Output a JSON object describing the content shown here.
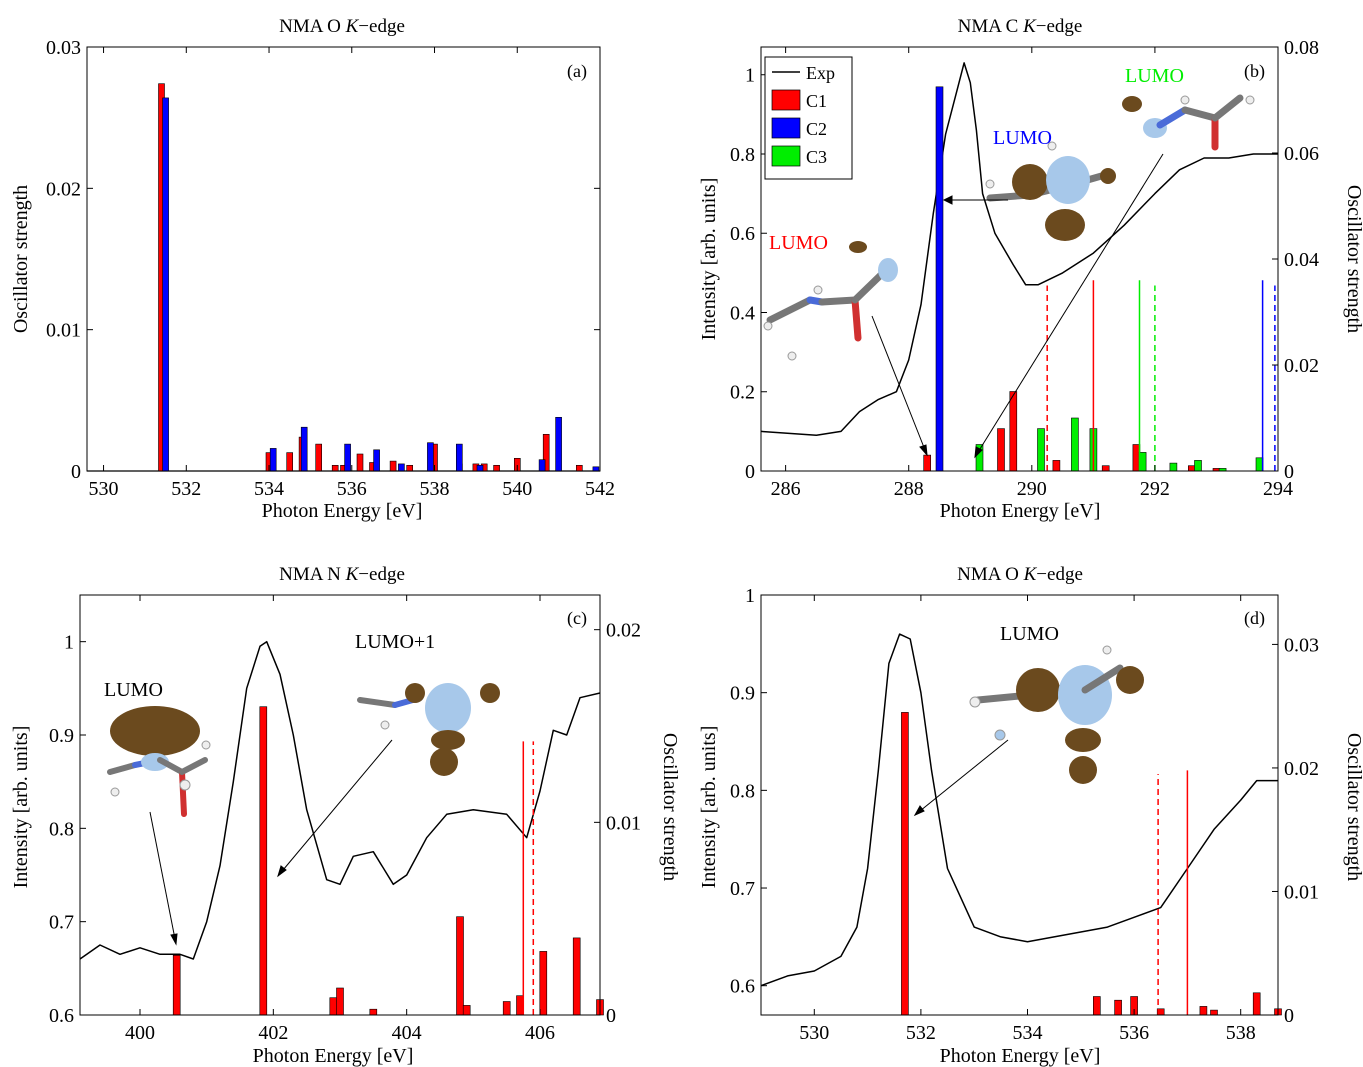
{
  "chart_data": [
    {
      "id": "a",
      "type": "bar",
      "title": "NMA O K−edge",
      "title_prefix": "NMA O ",
      "title_em": "K",
      "title_suffix": "−edge",
      "panel_label": "(a)",
      "xlabel": "Photon Energy [eV]",
      "ylabel": "Oscillator strength",
      "xlim": [
        529.6,
        542
      ],
      "ylim": [
        0,
        0.03
      ],
      "xticks": [
        530,
        532,
        534,
        536,
        538,
        540,
        542
      ],
      "yticks": [
        0,
        0.01,
        0.02,
        0.03
      ],
      "ytick_labels": [
        "0",
        "0.01",
        "0.02",
        "0.03"
      ],
      "baseline": [
        [
          529.6,
          0
        ],
        [
          531.3,
          0
        ],
        [
          542,
          0
        ]
      ],
      "series": [
        {
          "color": "#ff0000",
          "x": [
            531.4,
            534.0,
            534.5,
            534.8,
            535.2,
            535.6,
            535.8,
            536.2,
            536.5,
            537.0,
            537.4,
            538.0,
            538.6,
            539.0,
            539.2,
            539.5,
            540.0,
            540.7,
            541.5
          ],
          "values": [
            0.0274,
            0.0013,
            0.0013,
            0.0024,
            0.0019,
            0.0004,
            0.0004,
            0.0012,
            0.0006,
            0.0007,
            0.0004,
            0.0019,
            0.0005,
            0.0005,
            0.0005,
            0.0004,
            0.0009,
            0.0026,
            0.0004
          ]
        },
        {
          "color": "#0000ff",
          "x": [
            531.5,
            534.1,
            534.85,
            535.9,
            536.6,
            537.2,
            537.9,
            538.6,
            539.1,
            540.6,
            541.0,
            541.9
          ],
          "values": [
            0.0264,
            0.0016,
            0.0031,
            0.0019,
            0.0015,
            0.0005,
            0.002,
            0.0019,
            0.0004,
            0.0008,
            0.0038,
            0.0003
          ]
        }
      ]
    },
    {
      "id": "b",
      "type": "line+bar",
      "title": "NMA C K−edge",
      "title_prefix": "NMA C ",
      "title_em": "K",
      "title_suffix": "−edge",
      "panel_label": "(b)",
      "xlabel": "Photon Energy [eV]",
      "ylabel": "Intensity [arb. units]",
      "y2label": "Oscillator strength",
      "xlim": [
        285.6,
        294
      ],
      "ylim": [
        0,
        1.07
      ],
      "y2lim": [
        0,
        0.08
      ],
      "xticks": [
        286,
        288,
        290,
        292,
        294
      ],
      "yticks": [
        0,
        0.2,
        0.4,
        0.6,
        0.8,
        1
      ],
      "ytick_labels": [
        "0",
        "0.2",
        "0.4",
        "0.6",
        "0.8",
        "1"
      ],
      "y2ticks": [
        0,
        0.02,
        0.04,
        0.06,
        0.08
      ],
      "y2tick_labels": [
        "0",
        "0.02",
        "0.04",
        "0.06",
        "0.08"
      ],
      "legend": [
        {
          "label": "Exp",
          "kind": "line",
          "color": "#000000"
        },
        {
          "label": "C1",
          "kind": "patch",
          "color": "#ff0000"
        },
        {
          "label": "C2",
          "kind": "patch",
          "color": "#0000ff"
        },
        {
          "label": "C3",
          "kind": "patch",
          "color": "#00ee00"
        }
      ],
      "legend_position": "top-left",
      "exp_line": [
        [
          285.6,
          0.1
        ],
        [
          286.5,
          0.09
        ],
        [
          286.9,
          0.1
        ],
        [
          287.2,
          0.15
        ],
        [
          287.5,
          0.18
        ],
        [
          287.8,
          0.2
        ],
        [
          288.0,
          0.28
        ],
        [
          288.2,
          0.42
        ],
        [
          288.4,
          0.65
        ],
        [
          288.6,
          0.85
        ],
        [
          288.8,
          0.97
        ],
        [
          288.9,
          1.03
        ],
        [
          289.0,
          0.98
        ],
        [
          289.1,
          0.86
        ],
        [
          289.2,
          0.7
        ],
        [
          289.4,
          0.6
        ],
        [
          289.7,
          0.52
        ],
        [
          289.9,
          0.47
        ],
        [
          290.1,
          0.47
        ],
        [
          290.5,
          0.5
        ],
        [
          291.0,
          0.55
        ],
        [
          291.5,
          0.62
        ],
        [
          292.0,
          0.7
        ],
        [
          292.4,
          0.76
        ],
        [
          292.8,
          0.79
        ],
        [
          293.2,
          0.79
        ],
        [
          293.6,
          0.8
        ],
        [
          294.0,
          0.8
        ]
      ],
      "sticks": [
        {
          "color": "#ff0000",
          "x": [
            288.3,
            289.5,
            289.7,
            290.4,
            291.2,
            291.7,
            292.6,
            293.0
          ],
          "values": [
            0.003,
            0.008,
            0.015,
            0.002,
            0.001,
            0.005,
            0.001,
            0.0005
          ]
        },
        {
          "color": "#0000ff",
          "x": [
            288.5
          ],
          "values": [
            0.0725
          ]
        },
        {
          "color": "#00ee00",
          "x": [
            289.15,
            290.15,
            290.7,
            291.0,
            291.8,
            292.3,
            292.7,
            293.1,
            293.7
          ],
          "values": [
            0.005,
            0.008,
            0.01,
            0.008,
            0.0035,
            0.0015,
            0.002,
            0.0005,
            0.0025
          ]
        }
      ],
      "vlines": [
        {
          "x": 290.25,
          "color": "#ff0000",
          "dashed": true,
          "top": 0.035
        },
        {
          "x": 291.0,
          "color": "#ff0000",
          "dashed": false,
          "top": 0.036
        },
        {
          "x": 291.75,
          "color": "#00ee00",
          "dashed": false,
          "top": 0.036
        },
        {
          "x": 292.0,
          "color": "#00ee00",
          "dashed": true,
          "top": 0.035
        },
        {
          "x": 293.75,
          "color": "#0000ff",
          "dashed": false,
          "top": 0.036
        },
        {
          "x": 293.95,
          "color": "#0000ff",
          "dashed": true,
          "top": 0.035
        }
      ],
      "annotations": [
        {
          "text": "LUMO",
          "color": "#ff0000"
        },
        {
          "text": "LUMO",
          "color": "#0000ff"
        },
        {
          "text": "LUMO",
          "color": "#00ee00"
        }
      ]
    },
    {
      "id": "c",
      "type": "line+bar",
      "title": "NMA N K−edge",
      "title_prefix": "NMA N ",
      "title_em": "K",
      "title_suffix": "−edge",
      "panel_label": "(c)",
      "xlabel": "Photon Energy [eV]",
      "ylabel": "Intensity [arb. units]",
      "y2label": "Oscillator strength",
      "xlim": [
        399.1,
        406.9
      ],
      "ylim": [
        0.6,
        1.05
      ],
      "y2lim": [
        0,
        0.0218
      ],
      "xticks": [
        400,
        402,
        404,
        406
      ],
      "yticks": [
        0.6,
        0.7,
        0.8,
        0.9,
        1
      ],
      "ytick_labels": [
        "0.6",
        "0.7",
        "0.8",
        "0.9",
        "1"
      ],
      "y2ticks": [
        0,
        0.01,
        0.02
      ],
      "y2tick_labels": [
        "0",
        "0.01",
        "0.02"
      ],
      "exp_line": [
        [
          399.1,
          0.66
        ],
        [
          399.4,
          0.675
        ],
        [
          399.7,
          0.665
        ],
        [
          400.0,
          0.672
        ],
        [
          400.3,
          0.665
        ],
        [
          400.6,
          0.665
        ],
        [
          400.8,
          0.66
        ],
        [
          401.0,
          0.7
        ],
        [
          401.2,
          0.76
        ],
        [
          401.4,
          0.85
        ],
        [
          401.6,
          0.95
        ],
        [
          401.8,
          0.995
        ],
        [
          401.9,
          1.0
        ],
        [
          402.1,
          0.965
        ],
        [
          402.3,
          0.9
        ],
        [
          402.5,
          0.82
        ],
        [
          402.8,
          0.745
        ],
        [
          403.0,
          0.74
        ],
        [
          403.2,
          0.77
        ],
        [
          403.5,
          0.775
        ],
        [
          403.8,
          0.74
        ],
        [
          404.0,
          0.75
        ],
        [
          404.3,
          0.79
        ],
        [
          404.6,
          0.815
        ],
        [
          405.0,
          0.82
        ],
        [
          405.5,
          0.815
        ],
        [
          405.8,
          0.79
        ],
        [
          406.0,
          0.84
        ],
        [
          406.2,
          0.905
        ],
        [
          406.4,
          0.9
        ],
        [
          406.6,
          0.94
        ],
        [
          406.9,
          0.945
        ]
      ],
      "sticks": [
        {
          "color": "#ff0000",
          "x": [
            400.55,
            401.85,
            402.9,
            403.0,
            403.5,
            404.8,
            404.9,
            405.5,
            405.7,
            406.05,
            406.55,
            406.9
          ],
          "values": [
            0.0031,
            0.016,
            0.0009,
            0.0014,
            0.0003,
            0.0051,
            0.0005,
            0.0007,
            0.001,
            0.0033,
            0.004,
            0.0008
          ]
        }
      ],
      "vlines": [
        {
          "x": 405.75,
          "color": "#ff0000",
          "dashed": false,
          "top": 0.0142
        },
        {
          "x": 405.9,
          "color": "#ff0000",
          "dashed": true,
          "top": 0.0142
        }
      ],
      "annotations": [
        {
          "text": "LUMO",
          "color": "#000000"
        },
        {
          "text": "LUMO+1",
          "color": "#000000"
        }
      ]
    },
    {
      "id": "d",
      "type": "line+bar",
      "title": "NMA O K−edge",
      "title_prefix": "NMA O ",
      "title_em": "K",
      "title_suffix": "−edge",
      "panel_label": "(d)",
      "xlabel": "Photon Energy [eV]",
      "ylabel": "Intensity [arb. units]",
      "y2label": "Oscillator strength",
      "xlim": [
        529,
        538.7
      ],
      "ylim": [
        0.57,
        1.0
      ],
      "y2lim": [
        0,
        0.034
      ],
      "xticks": [
        530,
        532,
        534,
        536,
        538
      ],
      "yticks": [
        0.6,
        0.7,
        0.8,
        0.9,
        1
      ],
      "ytick_labels": [
        "0.6",
        "0.7",
        "0.8",
        "0.9",
        "1"
      ],
      "y2ticks": [
        0,
        0.01,
        0.02,
        0.03
      ],
      "y2tick_labels": [
        "0",
        "0.01",
        "0.02",
        "0.03"
      ],
      "exp_line": [
        [
          529.0,
          0.6
        ],
        [
          529.5,
          0.61
        ],
        [
          530.0,
          0.615
        ],
        [
          530.5,
          0.63
        ],
        [
          530.8,
          0.66
        ],
        [
          531.0,
          0.72
        ],
        [
          531.2,
          0.82
        ],
        [
          531.4,
          0.93
        ],
        [
          531.6,
          0.96
        ],
        [
          531.8,
          0.955
        ],
        [
          532.0,
          0.9
        ],
        [
          532.2,
          0.82
        ],
        [
          532.5,
          0.72
        ],
        [
          533.0,
          0.66
        ],
        [
          533.5,
          0.65
        ],
        [
          534.0,
          0.645
        ],
        [
          534.5,
          0.65
        ],
        [
          535.0,
          0.655
        ],
        [
          535.5,
          0.66
        ],
        [
          536.0,
          0.67
        ],
        [
          536.5,
          0.68
        ],
        [
          537.0,
          0.72
        ],
        [
          537.5,
          0.76
        ],
        [
          538.0,
          0.79
        ],
        [
          538.3,
          0.81
        ],
        [
          538.7,
          0.81
        ]
      ],
      "sticks": [
        {
          "color": "#ff0000",
          "x": [
            531.7,
            535.3,
            535.7,
            536.0,
            536.5,
            537.3,
            537.5,
            538.3,
            538.7
          ],
          "values": [
            0.0245,
            0.0015,
            0.0012,
            0.0015,
            0.0005,
            0.0007,
            0.0004,
            0.0018,
            0.0005
          ]
        }
      ],
      "vlines": [
        {
          "x": 536.45,
          "color": "#ff0000",
          "dashed": true,
          "top": 0.0195
        },
        {
          "x": 537.0,
          "color": "#ff0000",
          "dashed": false,
          "top": 0.0198
        }
      ],
      "annotations": [
        {
          "text": "LUMO",
          "color": "#000000"
        }
      ]
    }
  ]
}
